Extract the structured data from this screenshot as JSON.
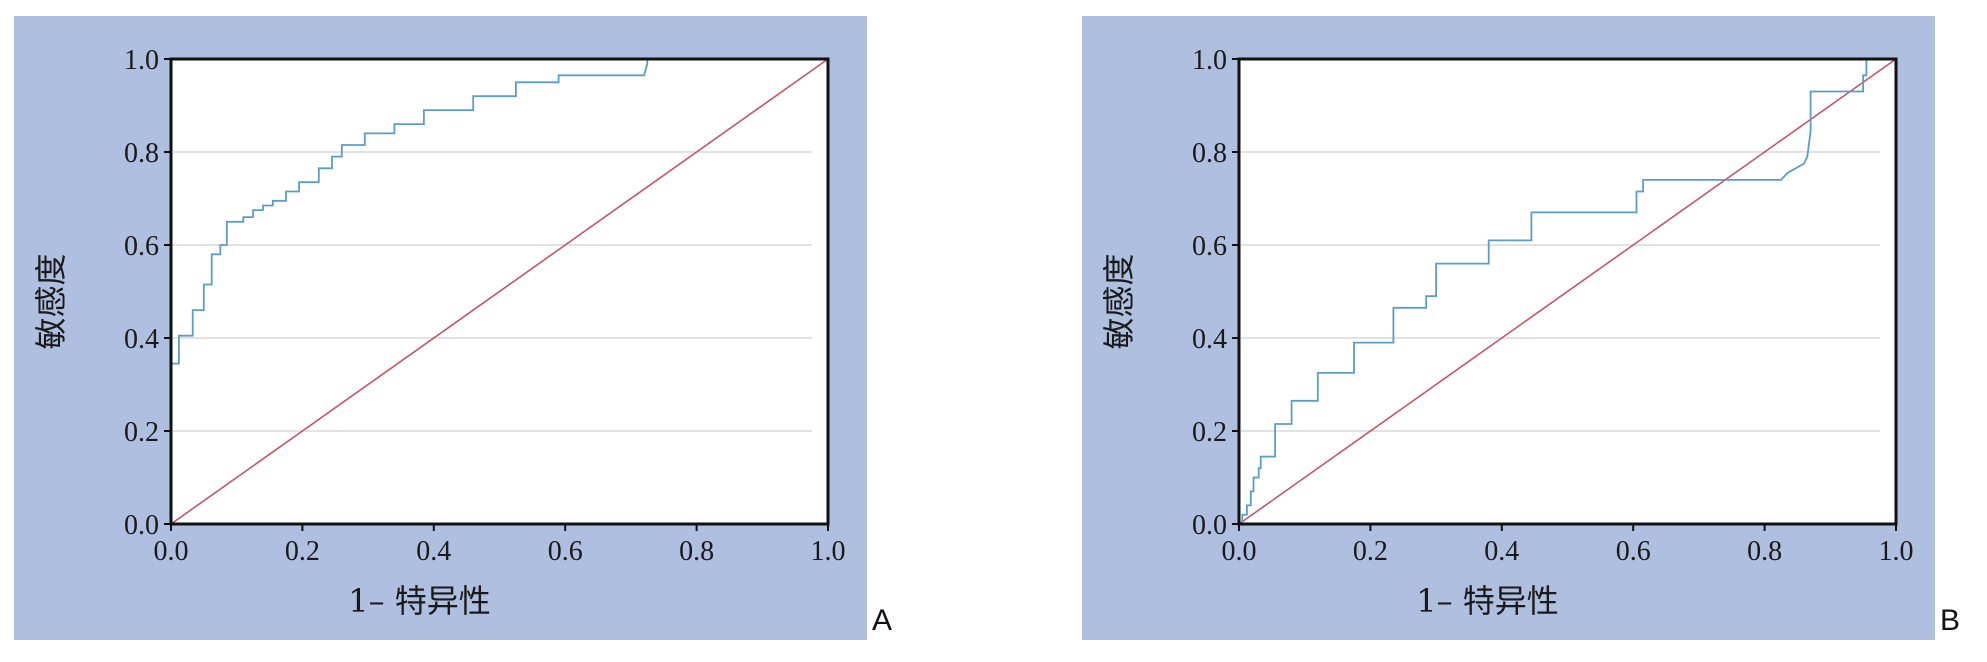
{
  "colors": {
    "panel_background": "#afbfe0",
    "plot_background": "#ffffff",
    "gridline": "#d9d9d9",
    "roc_curve": "#5a9ec4",
    "reference_line": "#c2566a"
  },
  "chart_data": [
    {
      "type": "line",
      "panel_label": "A",
      "xlabel": "1– 特异性",
      "ylabel": "敏感度",
      "xlim": [
        0,
        1
      ],
      "ylim": [
        0,
        1
      ],
      "xticks": [
        "0.0",
        "0.2",
        "0.4",
        "0.6",
        "0.8",
        "1.0"
      ],
      "yticks": [
        "0.0",
        "0.2",
        "0.4",
        "0.6",
        "0.8",
        "1.0"
      ],
      "grid": "horizontal",
      "series": [
        {
          "role": "roc",
          "x": [
            0.0,
            0.0,
            0.012,
            0.012,
            0.033,
            0.033,
            0.05,
            0.05,
            0.062,
            0.062,
            0.075,
            0.075,
            0.085,
            0.085,
            0.11,
            0.11,
            0.125,
            0.125,
            0.14,
            0.14,
            0.155,
            0.155,
            0.175,
            0.175,
            0.195,
            0.195,
            0.225,
            0.225,
            0.245,
            0.245,
            0.26,
            0.26,
            0.295,
            0.295,
            0.34,
            0.34,
            0.385,
            0.385,
            0.46,
            0.46,
            0.525,
            0.525,
            0.59,
            0.59,
            0.72,
            0.722,
            0.725,
            0.725,
            1.0
          ],
          "y": [
            0.0,
            0.345,
            0.345,
            0.405,
            0.405,
            0.46,
            0.46,
            0.515,
            0.515,
            0.58,
            0.58,
            0.6,
            0.6,
            0.65,
            0.65,
            0.66,
            0.66,
            0.675,
            0.675,
            0.685,
            0.685,
            0.695,
            0.695,
            0.715,
            0.715,
            0.735,
            0.735,
            0.765,
            0.765,
            0.79,
            0.79,
            0.815,
            0.815,
            0.84,
            0.84,
            0.86,
            0.86,
            0.89,
            0.89,
            0.92,
            0.92,
            0.95,
            0.95,
            0.965,
            0.965,
            0.975,
            0.99,
            1.0,
            1.0
          ]
        },
        {
          "role": "reference",
          "x": [
            0,
            1
          ],
          "y": [
            0,
            1
          ]
        }
      ]
    },
    {
      "type": "line",
      "panel_label": "B",
      "xlabel": "1– 特异性",
      "ylabel": "敏感度",
      "xlim": [
        0,
        1
      ],
      "ylim": [
        0,
        1
      ],
      "xticks": [
        "0.0",
        "0.2",
        "0.4",
        "0.6",
        "0.8",
        "1.0"
      ],
      "yticks": [
        "0.0",
        "0.2",
        "0.4",
        "0.6",
        "0.8",
        "1.0"
      ],
      "grid": "horizontal",
      "series": [
        {
          "role": "roc",
          "x": [
            0.0,
            0.005,
            0.005,
            0.012,
            0.012,
            0.018,
            0.018,
            0.022,
            0.022,
            0.03,
            0.03,
            0.033,
            0.033,
            0.055,
            0.055,
            0.08,
            0.08,
            0.12,
            0.12,
            0.175,
            0.175,
            0.235,
            0.235,
            0.285,
            0.285,
            0.3,
            0.3,
            0.38,
            0.38,
            0.445,
            0.445,
            0.605,
            0.605,
            0.615,
            0.615,
            0.825,
            0.835,
            0.86,
            0.865,
            0.87,
            0.87,
            0.95,
            0.95,
            0.955,
            0.955
          ],
          "y": [
            0.0,
            0.0,
            0.02,
            0.02,
            0.04,
            0.04,
            0.07,
            0.07,
            0.1,
            0.1,
            0.12,
            0.12,
            0.145,
            0.145,
            0.215,
            0.215,
            0.265,
            0.265,
            0.325,
            0.325,
            0.39,
            0.39,
            0.465,
            0.465,
            0.49,
            0.49,
            0.56,
            0.56,
            0.61,
            0.61,
            0.67,
            0.67,
            0.715,
            0.715,
            0.74,
            0.74,
            0.755,
            0.775,
            0.79,
            0.845,
            0.93,
            0.93,
            0.965,
            0.965,
            1.0
          ]
        },
        {
          "role": "reference",
          "x": [
            0,
            1
          ],
          "y": [
            0,
            1
          ]
        }
      ]
    }
  ]
}
